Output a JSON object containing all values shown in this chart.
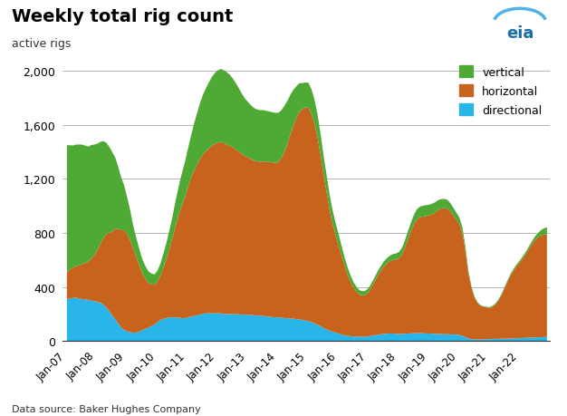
{
  "title": "Weekly total rig count",
  "ylabel_text": "active rigs",
  "source": "Data source: Baker Hughes Company",
  "ylim": [
    0,
    2100
  ],
  "yticks": [
    0,
    400,
    800,
    1200,
    1600,
    2000
  ],
  "colors": {
    "vertical": "#4faa35",
    "horizontal": "#c8631e",
    "directional": "#29b5e8"
  },
  "eia_color": "#1a6fa8",
  "xtick_years": [
    2007,
    2008,
    2009,
    2010,
    2011,
    2012,
    2013,
    2014,
    2015,
    2016,
    2017,
    2018,
    2019,
    2020,
    2021,
    2022
  ],
  "x": [
    2007.0,
    2007.1,
    2007.2,
    2007.3,
    2007.4,
    2007.5,
    2007.6,
    2007.7,
    2007.8,
    2007.9,
    2008.0,
    2008.1,
    2008.2,
    2008.3,
    2008.4,
    2008.5,
    2008.6,
    2008.7,
    2008.8,
    2008.9,
    2009.0,
    2009.1,
    2009.2,
    2009.3,
    2009.4,
    2009.5,
    2009.6,
    2009.7,
    2009.8,
    2009.9,
    2010.0,
    2010.1,
    2010.2,
    2010.3,
    2010.4,
    2010.5,
    2010.6,
    2010.7,
    2010.8,
    2010.9,
    2011.0,
    2011.1,
    2011.2,
    2011.3,
    2011.4,
    2011.5,
    2011.6,
    2011.7,
    2011.8,
    2011.9,
    2012.0,
    2012.1,
    2012.2,
    2012.3,
    2012.4,
    2012.5,
    2012.6,
    2012.7,
    2012.8,
    2012.9,
    2013.0,
    2013.1,
    2013.2,
    2013.3,
    2013.4,
    2013.5,
    2013.6,
    2013.7,
    2013.8,
    2013.9,
    2014.0,
    2014.1,
    2014.2,
    2014.3,
    2014.4,
    2014.5,
    2014.6,
    2014.7,
    2014.8,
    2014.9,
    2015.0,
    2015.1,
    2015.2,
    2015.3,
    2015.4,
    2015.5,
    2015.6,
    2015.7,
    2015.8,
    2015.9,
    2016.0,
    2016.1,
    2016.2,
    2016.3,
    2016.4,
    2016.5,
    2016.6,
    2016.7,
    2016.8,
    2016.9,
    2017.0,
    2017.1,
    2017.2,
    2017.3,
    2017.4,
    2017.5,
    2017.6,
    2017.7,
    2017.8,
    2017.9,
    2018.0,
    2018.1,
    2018.2,
    2018.3,
    2018.4,
    2018.5,
    2018.6,
    2018.7,
    2018.8,
    2018.9,
    2019.0,
    2019.1,
    2019.2,
    2019.3,
    2019.4,
    2019.5,
    2019.6,
    2019.7,
    2019.8,
    2019.9,
    2020.0,
    2020.1,
    2020.2,
    2020.3,
    2020.4,
    2020.5,
    2020.6,
    2020.7,
    2020.8,
    2020.9,
    2021.0,
    2021.1,
    2021.2,
    2021.3,
    2021.4,
    2021.5,
    2021.6,
    2021.7,
    2021.8,
    2021.9,
    2022.0,
    2022.1,
    2022.2,
    2022.3,
    2022.4,
    2022.5,
    2022.6,
    2022.7,
    2022.8,
    2022.9
  ],
  "directional": [
    310,
    315,
    318,
    320,
    315,
    310,
    308,
    305,
    300,
    295,
    290,
    285,
    270,
    250,
    220,
    190,
    160,
    130,
    100,
    80,
    70,
    65,
    60,
    62,
    70,
    80,
    90,
    100,
    110,
    120,
    140,
    155,
    165,
    170,
    175,
    175,
    175,
    172,
    170,
    168,
    175,
    180,
    185,
    190,
    195,
    200,
    205,
    205,
    205,
    205,
    205,
    205,
    200,
    200,
    200,
    198,
    198,
    198,
    195,
    195,
    195,
    192,
    190,
    190,
    188,
    185,
    182,
    180,
    178,
    175,
    175,
    173,
    170,
    168,
    168,
    165,
    162,
    160,
    155,
    150,
    148,
    140,
    130,
    120,
    110,
    95,
    85,
    75,
    68,
    62,
    55,
    48,
    42,
    38,
    35,
    33,
    32,
    32,
    32,
    33,
    35,
    38,
    42,
    46,
    50,
    52,
    54,
    55,
    55,
    53,
    52,
    52,
    53,
    55,
    56,
    57,
    58,
    58,
    57,
    56,
    55,
    54,
    53,
    52,
    51,
    50,
    50,
    49,
    48,
    47,
    45,
    38,
    28,
    18,
    14,
    12,
    11,
    11,
    12,
    13,
    14,
    15,
    16,
    16,
    16,
    17,
    17,
    18,
    19,
    20,
    21,
    22,
    23,
    24,
    25,
    26,
    27,
    28,
    29,
    30
  ],
  "horizontal": [
    200,
    215,
    225,
    235,
    245,
    260,
    270,
    280,
    310,
    340,
    380,
    430,
    490,
    540,
    580,
    620,
    670,
    700,
    720,
    740,
    720,
    680,
    620,
    560,
    490,
    420,
    370,
    330,
    310,
    295,
    300,
    330,
    380,
    440,
    510,
    590,
    680,
    760,
    830,
    890,
    960,
    1020,
    1070,
    1110,
    1150,
    1180,
    1200,
    1220,
    1240,
    1255,
    1265,
    1270,
    1265,
    1255,
    1245,
    1235,
    1220,
    1205,
    1190,
    1175,
    1165,
    1155,
    1145,
    1140,
    1140,
    1145,
    1145,
    1145,
    1145,
    1145,
    1150,
    1180,
    1230,
    1290,
    1360,
    1430,
    1490,
    1540,
    1560,
    1580,
    1580,
    1540,
    1480,
    1390,
    1270,
    1140,
    1020,
    900,
    800,
    720,
    650,
    580,
    510,
    450,
    400,
    360,
    330,
    310,
    305,
    310,
    330,
    365,
    400,
    440,
    470,
    500,
    520,
    535,
    545,
    550,
    560,
    590,
    640,
    700,
    760,
    810,
    845,
    860,
    865,
    870,
    875,
    885,
    900,
    920,
    930,
    935,
    930,
    910,
    880,
    850,
    820,
    760,
    640,
    480,
    380,
    310,
    270,
    250,
    240,
    235,
    230,
    238,
    255,
    285,
    325,
    375,
    425,
    470,
    505,
    535,
    560,
    590,
    620,
    655,
    690,
    720,
    740,
    755,
    760,
    760
  ],
  "vertical": [
    940,
    920,
    905,
    900,
    895,
    885,
    870,
    855,
    840,
    820,
    790,
    760,
    720,
    680,
    640,
    590,
    530,
    460,
    390,
    330,
    270,
    220,
    170,
    140,
    120,
    105,
    95,
    85,
    80,
    78,
    80,
    90,
    105,
    120,
    140,
    160,
    185,
    210,
    235,
    260,
    280,
    310,
    345,
    380,
    410,
    440,
    465,
    490,
    510,
    525,
    535,
    540,
    540,
    535,
    525,
    510,
    490,
    468,
    445,
    425,
    410,
    398,
    390,
    385,
    382,
    380,
    378,
    375,
    372,
    370,
    365,
    355,
    340,
    320,
    295,
    265,
    235,
    210,
    195,
    185,
    185,
    185,
    180,
    170,
    155,
    140,
    125,
    110,
    100,
    92,
    85,
    75,
    65,
    55,
    47,
    40,
    36,
    33,
    31,
    30,
    30,
    31,
    32,
    34,
    36,
    38,
    40,
    42,
    44,
    45,
    47,
    50,
    55,
    60,
    65,
    70,
    75,
    78,
    80,
    80,
    80,
    78,
    75,
    72,
    70,
    68,
    66,
    62,
    58,
    54,
    50,
    42,
    30,
    18,
    10,
    7,
    6,
    5,
    5,
    6,
    7,
    8,
    9,
    10,
    10,
    11,
    11,
    12,
    13,
    14,
    15,
    16,
    18,
    20,
    23,
    27,
    32,
    38,
    45,
    52
  ]
}
